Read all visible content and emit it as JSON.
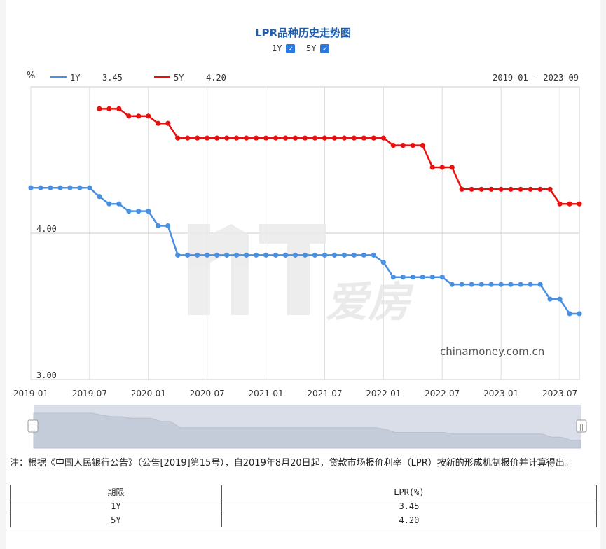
{
  "chart_data": {
    "type": "line",
    "title": "LPR品种历史走势图",
    "ylabel": "%",
    "date_range": "2019-01 - 2023-09",
    "ylim": [
      3.0,
      4.95
    ],
    "y_ticks": [
      "4.00",
      "3.00"
    ],
    "x_tick_labels": [
      "2019-01",
      "2019-07",
      "2020-01",
      "2020-07",
      "2021-01",
      "2021-07",
      "2022-01",
      "2022-07",
      "2023-01",
      "2023-07"
    ],
    "x_start": "2019-01",
    "grid": true,
    "legend_position": "top-left",
    "watermark": "chinamoney.com.cn",
    "series": [
      {
        "name": "1Y",
        "latest": "3.45",
        "color": "#4a90e2",
        "x": [
          "2019-01",
          "2019-02",
          "2019-03",
          "2019-04",
          "2019-05",
          "2019-06",
          "2019-07",
          "2019-08",
          "2019-09",
          "2019-10",
          "2019-11",
          "2019-12",
          "2020-01",
          "2020-02",
          "2020-03",
          "2020-04",
          "2020-05",
          "2020-06",
          "2020-07",
          "2020-08",
          "2020-09",
          "2020-10",
          "2020-11",
          "2020-12",
          "2021-01",
          "2021-02",
          "2021-03",
          "2021-04",
          "2021-05",
          "2021-06",
          "2021-07",
          "2021-08",
          "2021-09",
          "2021-10",
          "2021-11",
          "2021-12",
          "2022-01",
          "2022-02",
          "2022-03",
          "2022-04",
          "2022-05",
          "2022-06",
          "2022-07",
          "2022-08",
          "2022-09",
          "2022-10",
          "2022-11",
          "2022-12",
          "2023-01",
          "2023-02",
          "2023-03",
          "2023-04",
          "2023-05",
          "2023-06",
          "2023-07",
          "2023-08",
          "2023-09"
        ],
        "values": [
          4.31,
          4.31,
          4.31,
          4.31,
          4.31,
          4.31,
          4.31,
          4.25,
          4.2,
          4.2,
          4.15,
          4.15,
          4.15,
          4.05,
          4.05,
          3.85,
          3.85,
          3.85,
          3.85,
          3.85,
          3.85,
          3.85,
          3.85,
          3.85,
          3.85,
          3.85,
          3.85,
          3.85,
          3.85,
          3.85,
          3.85,
          3.85,
          3.85,
          3.85,
          3.85,
          3.85,
          3.8,
          3.7,
          3.7,
          3.7,
          3.7,
          3.7,
          3.7,
          3.65,
          3.65,
          3.65,
          3.65,
          3.65,
          3.65,
          3.65,
          3.65,
          3.65,
          3.65,
          3.55,
          3.55,
          3.45,
          3.45
        ]
      },
      {
        "name": "5Y",
        "latest": "4.20",
        "color": "#e8100e",
        "x": [
          "2019-08",
          "2019-09",
          "2019-10",
          "2019-11",
          "2019-12",
          "2020-01",
          "2020-02",
          "2020-03",
          "2020-04",
          "2020-05",
          "2020-06",
          "2020-07",
          "2020-08",
          "2020-09",
          "2020-10",
          "2020-11",
          "2020-12",
          "2021-01",
          "2021-02",
          "2021-03",
          "2021-04",
          "2021-05",
          "2021-06",
          "2021-07",
          "2021-08",
          "2021-09",
          "2021-10",
          "2021-11",
          "2021-12",
          "2022-01",
          "2022-02",
          "2022-03",
          "2022-04",
          "2022-05",
          "2022-06",
          "2022-07",
          "2022-08",
          "2022-09",
          "2022-10",
          "2022-11",
          "2022-12",
          "2023-01",
          "2023-02",
          "2023-03",
          "2023-04",
          "2023-05",
          "2023-06",
          "2023-07",
          "2023-08",
          "2023-09"
        ],
        "values": [
          4.85,
          4.85,
          4.85,
          4.8,
          4.8,
          4.8,
          4.75,
          4.75,
          4.65,
          4.65,
          4.65,
          4.65,
          4.65,
          4.65,
          4.65,
          4.65,
          4.65,
          4.65,
          4.65,
          4.65,
          4.65,
          4.65,
          4.65,
          4.65,
          4.65,
          4.65,
          4.65,
          4.65,
          4.65,
          4.65,
          4.6,
          4.6,
          4.6,
          4.6,
          4.45,
          4.45,
          4.45,
          4.3,
          4.3,
          4.3,
          4.3,
          4.3,
          4.3,
          4.3,
          4.3,
          4.3,
          4.3,
          4.2,
          4.2,
          4.2
        ]
      }
    ]
  },
  "toggles": [
    {
      "label": "1Y",
      "checked": true
    },
    {
      "label": "5Y",
      "checked": true
    }
  ],
  "checkbox_glyph": "✓",
  "slider_glyph": "||",
  "note": "注：根据《中国人民银行公告》（公告[2019]第15号），自2019年8月20日起，贷款市场报价利率（LPR）按新的形成机制报价并计算得出。",
  "table": {
    "headers": [
      "期限",
      "LPR(%)"
    ],
    "rows": [
      [
        "1Y",
        "3.45"
      ],
      [
        "5Y",
        "4.20"
      ]
    ]
  }
}
